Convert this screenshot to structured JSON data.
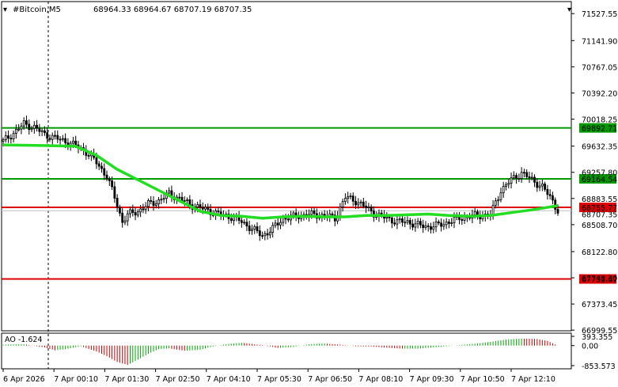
{
  "chart_data": {
    "type": "candlestick",
    "header": {
      "symbol": "#Bitcoin,M5",
      "ohlc": "68964.33 68964.67 68707.19 68707.35"
    },
    "price_axis": {
      "ticks": [
        "71527.55",
        "71141.90",
        "70767.05",
        "70392.20",
        "70018.25",
        "69632.35",
        "69257.80",
        "68883.55",
        "68508.70",
        "68122.80",
        "67748.30",
        "67373.45",
        "66999.55"
      ],
      "range": [
        66990,
        71700
      ]
    },
    "time_axis": {
      "ticks": [
        "6 Apr 2026",
        "7 Apr 00:10",
        "7 Apr 01:30",
        "7 Apr 02:50",
        "7 Apr 04:10",
        "7 Apr 05:30",
        "7 Apr 06:50",
        "7 Apr 08:10",
        "7 Apr 09:30",
        "7 Apr 10:50",
        "7 Apr 12:10"
      ]
    },
    "levels": [
      {
        "label": "69892.71",
        "value": 69892.71,
        "color": "#009900"
      },
      {
        "label": "69164.54",
        "value": 69164.54,
        "color": "#009900"
      },
      {
        "label": "68755.77",
        "value": 68755.77,
        "color": "#dd0000"
      },
      {
        "label": "67731.67",
        "value": 67731.67,
        "color": "#dd0000"
      }
    ],
    "current_price_label": "68707.35",
    "close_path": [
      [
        0,
        69700
      ],
      [
        5,
        69850
      ],
      [
        8,
        69950
      ],
      [
        12,
        69900
      ],
      [
        16,
        69800
      ],
      [
        20,
        69750
      ],
      [
        24,
        69700
      ],
      [
        28,
        69640
      ],
      [
        32,
        69550
      ],
      [
        36,
        69400
      ],
      [
        40,
        69200
      ],
      [
        43,
        68900
      ],
      [
        46,
        68550
      ],
      [
        48,
        68650
      ],
      [
        52,
        68700
      ],
      [
        56,
        68800
      ],
      [
        60,
        68850
      ],
      [
        64,
        68950
      ],
      [
        68,
        68880
      ],
      [
        72,
        68800
      ],
      [
        76,
        68750
      ],
      [
        80,
        68700
      ],
      [
        84,
        68650
      ],
      [
        88,
        68620
      ],
      [
        92,
        68550
      ],
      [
        96,
        68450
      ],
      [
        100,
        68350
      ],
      [
        104,
        68450
      ],
      [
        108,
        68600
      ],
      [
        112,
        68620
      ],
      [
        116,
        68650
      ],
      [
        120,
        68650
      ],
      [
        124,
        68640
      ],
      [
        128,
        68600
      ],
      [
        132,
        68900
      ],
      [
        136,
        68850
      ],
      [
        140,
        68750
      ],
      [
        144,
        68650
      ],
      [
        148,
        68600
      ],
      [
        152,
        68550
      ],
      [
        156,
        68550
      ],
      [
        160,
        68500
      ],
      [
        164,
        68480
      ],
      [
        168,
        68500
      ],
      [
        172,
        68550
      ],
      [
        176,
        68600
      ],
      [
        180,
        68630
      ],
      [
        184,
        68640
      ],
      [
        188,
        68650
      ],
      [
        192,
        69000
      ],
      [
        196,
        69150
      ],
      [
        200,
        69250
      ],
      [
        204,
        69150
      ],
      [
        208,
        69050
      ],
      [
        212,
        68850
      ],
      [
        214,
        68707.35
      ]
    ],
    "ma_path": [
      [
        0,
        69650
      ],
      [
        15,
        69640
      ],
      [
        28,
        69630
      ],
      [
        36,
        69500
      ],
      [
        44,
        69300
      ],
      [
        52,
        69150
      ],
      [
        60,
        69000
      ],
      [
        68,
        68850
      ],
      [
        76,
        68700
      ],
      [
        84,
        68640
      ],
      [
        92,
        68630
      ],
      [
        100,
        68600
      ],
      [
        108,
        68620
      ],
      [
        116,
        68630
      ],
      [
        124,
        68620
      ],
      [
        132,
        68620
      ],
      [
        140,
        68640
      ],
      [
        148,
        68640
      ],
      [
        156,
        68650
      ],
      [
        164,
        68660
      ],
      [
        172,
        68640
      ],
      [
        180,
        68630
      ],
      [
        188,
        68640
      ],
      [
        196,
        68680
      ],
      [
        204,
        68720
      ],
      [
        214,
        68780
      ]
    ],
    "ao": {
      "label": "AO -1.624",
      "ticks": [
        "393.355",
        "0.00",
        "-853.573"
      ],
      "range": [
        -853.573,
        393.355
      ],
      "path": [
        [
          0,
          40
        ],
        [
          8,
          60
        ],
        [
          16,
          -80
        ],
        [
          20,
          -200
        ],
        [
          24,
          -150
        ],
        [
          30,
          -30
        ],
        [
          36,
          -250
        ],
        [
          40,
          -450
        ],
        [
          44,
          -700
        ],
        [
          48,
          -820
        ],
        [
          52,
          -600
        ],
        [
          56,
          -350
        ],
        [
          60,
          -150
        ],
        [
          64,
          -120
        ],
        [
          70,
          -220
        ],
        [
          76,
          -180
        ],
        [
          80,
          -60
        ],
        [
          86,
          60
        ],
        [
          92,
          120
        ],
        [
          100,
          20
        ],
        [
          106,
          -100
        ],
        [
          112,
          -60
        ],
        [
          118,
          60
        ],
        [
          124,
          90
        ],
        [
          130,
          40
        ],
        [
          136,
          -30
        ],
        [
          142,
          -40
        ],
        [
          148,
          -90
        ],
        [
          154,
          -130
        ],
        [
          160,
          -130
        ],
        [
          168,
          -60
        ],
        [
          176,
          20
        ],
        [
          182,
          80
        ],
        [
          188,
          160
        ],
        [
          194,
          260
        ],
        [
          200,
          300
        ],
        [
          206,
          280
        ],
        [
          210,
          200
        ],
        [
          214,
          -1.624
        ]
      ]
    }
  }
}
